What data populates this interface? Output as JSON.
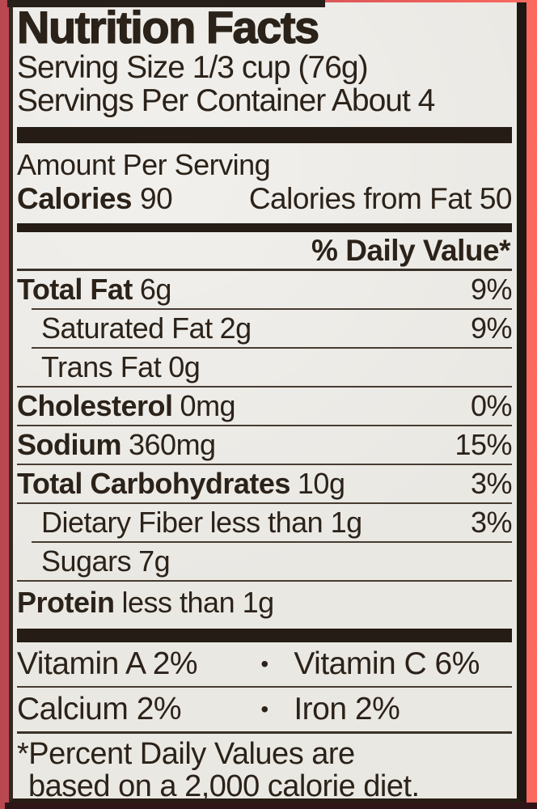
{
  "label": {
    "title": "Nutrition Facts",
    "serving_size": "Serving Size 1/3 cup (76g)",
    "servings_per_container": "Servings Per Container About 4",
    "amount_per_serving": "Amount Per Serving",
    "calories": {
      "label": "Calories",
      "value": "90",
      "from_fat": "Calories from Fat 50"
    },
    "daily_value_header": "% Daily Value*",
    "nutrients": [
      {
        "name": "Total Fat",
        "amount": "6g",
        "dv": "9%"
      },
      {
        "name": "Saturated Fat",
        "amount": "2g",
        "dv": "9%"
      },
      {
        "name": "Trans Fat",
        "amount": "0g",
        "dv": ""
      },
      {
        "name": "Cholesterol",
        "amount": "0mg",
        "dv": "0%"
      },
      {
        "name": "Sodium",
        "amount": "360mg",
        "dv": "15%"
      },
      {
        "name": "Total Carbohydrates",
        "amount": "10g",
        "dv": "3%"
      },
      {
        "name": "Dietary Fiber",
        "amount": "less than 1g",
        "dv": "3%"
      },
      {
        "name": "Sugars",
        "amount": "7g",
        "dv": ""
      },
      {
        "name": "Protein",
        "amount": "less than 1g",
        "dv": ""
      }
    ],
    "vitamins": [
      {
        "left": "Vitamin A 2%",
        "separator": "•",
        "right": "Vitamin C 6%"
      },
      {
        "left": "Calcium 2%",
        "separator": "•",
        "right": "Iron 2%"
      }
    ],
    "footnote": [
      "*Percent Daily Values are",
      "based on a 2,000 calorie diet."
    ]
  },
  "colors": {
    "package_red_left": "#c74f56",
    "package_red_right": "#fa6a60",
    "label_background": "#eae8e3",
    "ink": "#2b2219",
    "separator_bar": "#241c15",
    "bottom_strip": "#301518"
  }
}
